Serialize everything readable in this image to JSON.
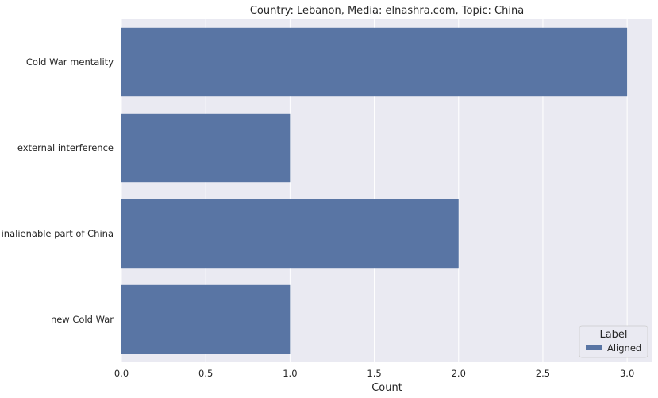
{
  "chart_data": {
    "type": "bar",
    "orientation": "horizontal",
    "title": "Country: Lebanon, Media: elnashra.com, Topic: China",
    "xlabel": "Count",
    "ylabel": "",
    "categories": [
      "Cold War mentality",
      "external interference",
      "inalienable part of China",
      "new Cold War"
    ],
    "series": [
      {
        "name": "Aligned",
        "values": [
          3,
          1,
          2,
          1
        ]
      }
    ],
    "xlim": [
      0,
      3.15
    ],
    "xticks": [
      "0.0",
      "0.5",
      "1.0",
      "1.5",
      "2.0",
      "2.5",
      "3.0"
    ],
    "grid": true,
    "legend": {
      "title": "Label",
      "position": "bottom-right"
    },
    "colors": {
      "bar": "#5975a4",
      "plot_background": "#eaeaf2",
      "grid": "#ffffff"
    }
  }
}
